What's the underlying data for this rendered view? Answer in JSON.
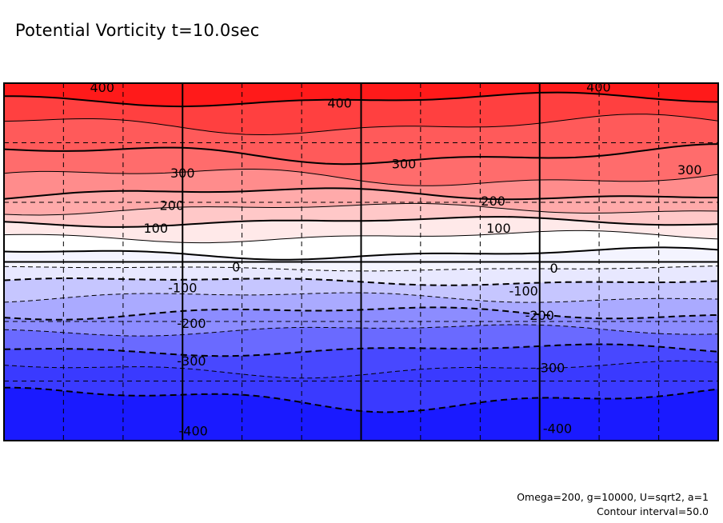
{
  "chart_data": {
    "type": "contour",
    "title": "Potential Vorticity t=10.0sec",
    "variable": "Potential Vorticity",
    "time": "t=10.0sec",
    "parameters_text": "Omega=200, g=10000, U=sqrt2, a=1",
    "contour_interval_text": "Contour interval=50.0",
    "contour_interval": 50.0,
    "value_range": [
      -450,
      450
    ],
    "levels": [
      -450,
      -400,
      -350,
      -300,
      -250,
      -200,
      -150,
      -100,
      -50,
      0,
      50,
      100,
      150,
      200,
      250,
      300,
      350,
      400,
      450
    ],
    "colormap": "blue-white-red",
    "fill_colors": {
      "-450": "#1a1aff",
      "-400": "#3a3aff",
      "-350": "#4848ff",
      "-300": "#6a6aff",
      "-250": "#8c8cff",
      "-200": "#aaaaff",
      "-150": "#c6c6ff",
      "-100": "#e8e8ff",
      "-50": "#f4f4ff",
      "0": "#ffffff",
      "50": "#ffe9e9",
      "100": "#ffc8c8",
      "150": "#ffaaaa",
      "200": "#ff8c8c",
      "250": "#ff6c6c",
      "300": "#ff5a5a",
      "350": "#ff4040",
      "400": "#ff1a1a"
    },
    "x_range": [
      0,
      4
    ],
    "y_range": [
      -3,
      3
    ],
    "grid": true,
    "solid_grid_x": [
      1,
      2,
      3
    ],
    "dashed_grid_x": [
      0.333,
      0.667,
      1.333,
      1.667,
      2.333,
      2.667,
      3.333,
      3.667
    ],
    "solid_grid_y": [
      0
    ],
    "dashed_grid_y": [
      -2,
      -1,
      1,
      2
    ],
    "contour_labels": [
      {
        "text": "400",
        "value": 400,
        "x": 0.55,
        "y": 2.93
      },
      {
        "text": "400",
        "value": 400,
        "x": 1.88,
        "y": 2.67
      },
      {
        "text": "400",
        "value": 400,
        "x": 3.33,
        "y": 2.94
      },
      {
        "text": "300",
        "value": 300,
        "x": 1.0,
        "y": 1.5
      },
      {
        "text": "300",
        "value": 300,
        "x": 2.24,
        "y": 1.65
      },
      {
        "text": "300",
        "value": 300,
        "x": 3.84,
        "y": 1.55
      },
      {
        "text": "200",
        "value": 200,
        "x": 0.94,
        "y": 0.95
      },
      {
        "text": "200",
        "value": 200,
        "x": 2.74,
        "y": 1.03
      },
      {
        "text": "100",
        "value": 100,
        "x": 0.85,
        "y": 0.57
      },
      {
        "text": "100",
        "value": 100,
        "x": 2.77,
        "y": 0.57
      },
      {
        "text": "0",
        "value": 0,
        "x": 1.3,
        "y": -0.08
      },
      {
        "text": "0",
        "value": 0,
        "x": 3.08,
        "y": -0.1
      },
      {
        "text": "-100",
        "value": -100,
        "x": 1.0,
        "y": -0.43
      },
      {
        "text": "-100",
        "value": -100,
        "x": 2.91,
        "y": -0.48
      },
      {
        "text": "-200",
        "value": -200,
        "x": 1.05,
        "y": -1.03
      },
      {
        "text": "-200",
        "value": -200,
        "x": 3.0,
        "y": -0.89
      },
      {
        "text": "-300",
        "value": -300,
        "x": 1.05,
        "y": -1.66
      },
      {
        "text": "-300",
        "value": -300,
        "x": 3.06,
        "y": -1.77
      },
      {
        "text": "-400",
        "value": -400,
        "x": 1.06,
        "y": -2.83
      },
      {
        "text": "-400",
        "value": -400,
        "x": 3.1,
        "y": -2.79
      }
    ],
    "bands": [
      {
        "lower": 400,
        "upper": 450,
        "y_center": 2.9,
        "amp": 0.08
      },
      {
        "lower": 350,
        "upper": 400,
        "y_center": 2.55,
        "amp": 0.12
      },
      {
        "lower": 300,
        "upper": 350,
        "y_center": 2.05,
        "amp": 0.12
      },
      {
        "lower": 250,
        "upper": 300,
        "y_center": 1.55,
        "amp": 0.12
      },
      {
        "lower": 200,
        "upper": 250,
        "y_center": 1.3,
        "amp": 0.08
      },
      {
        "lower": 150,
        "upper": 200,
        "y_center": 0.98,
        "amp": 0.07
      },
      {
        "lower": 100,
        "upper": 150,
        "y_center": 0.8,
        "amp": 0.06
      },
      {
        "lower": 50,
        "upper": 100,
        "y_center": 0.55,
        "amp": 0.07
      },
      {
        "lower": 0,
        "upper": 50,
        "y_center": 0.3,
        "amp": 0.07
      },
      {
        "lower": -50,
        "upper": 0,
        "y_center": -0.02,
        "amp": 0.03
      },
      {
        "lower": -100,
        "upper": -50,
        "y_center": -0.2,
        "amp": 0.05
      },
      {
        "lower": -150,
        "upper": -100,
        "y_center": -0.45,
        "amp": 0.07
      },
      {
        "lower": -200,
        "upper": -150,
        "y_center": -0.73,
        "amp": 0.08
      },
      {
        "lower": -250,
        "upper": -200,
        "y_center": -0.98,
        "amp": 0.07
      },
      {
        "lower": -300,
        "upper": -250,
        "y_center": -1.3,
        "amp": 0.07
      },
      {
        "lower": -350,
        "upper": -300,
        "y_center": -1.65,
        "amp": 0.1
      },
      {
        "lower": -400,
        "upper": -350,
        "y_center": -1.95,
        "amp": 0.15
      },
      {
        "lower": -450,
        "upper": -400,
        "y_center": -2.65,
        "amp": 0.06
      }
    ]
  }
}
